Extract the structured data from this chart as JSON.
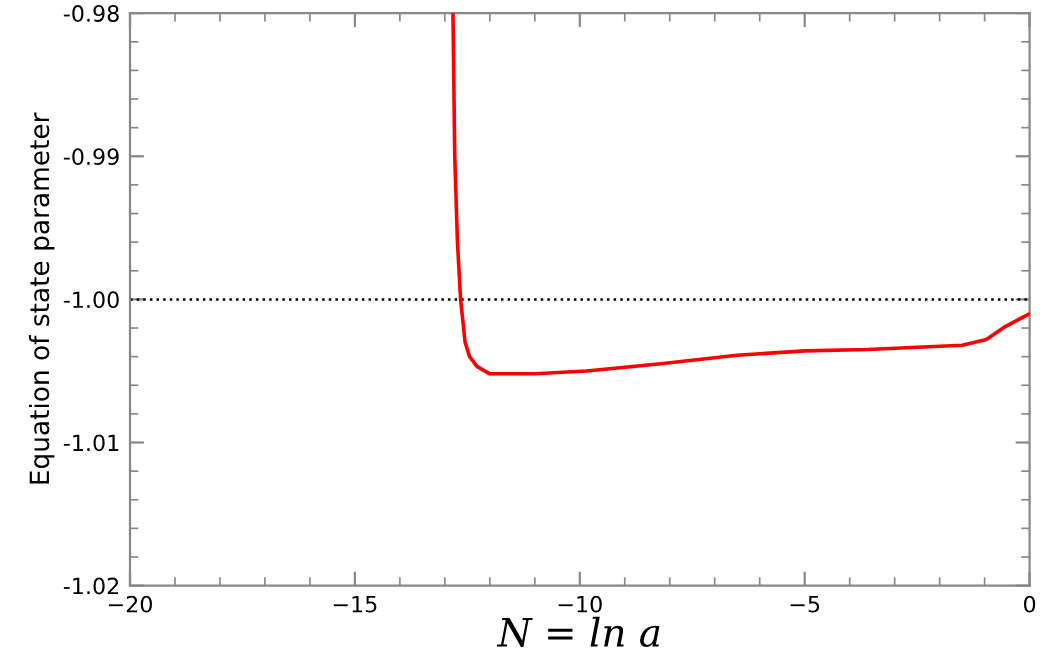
{
  "chart_data": {
    "type": "line",
    "xlabel": "N = ln a",
    "ylabel": "Equation of state parameter",
    "series": [
      {
        "color": "#ff0000",
        "x": [
          -12.82,
          -12.78,
          -12.72,
          -12.65,
          -12.55,
          -12.45,
          -12.28,
          -12.0,
          -11.0,
          -9.85,
          -8.2,
          -6.5,
          -5.0,
          -3.6,
          -1.5,
          -0.96,
          -0.54,
          0.0
        ],
        "values": [
          -0.98,
          -0.99,
          -0.996,
          -1.0,
          -1.003,
          -1.004,
          -1.0047,
          -1.0052,
          -1.0052,
          -1.005,
          -1.0045,
          -1.0039,
          -1.0036,
          -1.0035,
          -1.0032,
          -1.0028,
          -1.0019,
          -1.001
        ]
      }
    ],
    "xlim": [
      -20,
      0
    ],
    "ylim": [
      -1.02,
      -0.98
    ],
    "xticks": [
      {
        "value": -20,
        "label": "−20"
      },
      {
        "value": -15,
        "label": "−15"
      },
      {
        "value": -10,
        "label": "−10"
      },
      {
        "value": -5,
        "label": "−5"
      },
      0
    ],
    "yticks": [
      {
        "value": -1.02,
        "label": "-1.02"
      },
      {
        "value": -1.01,
        "label": "-1.01"
      },
      {
        "value": -1.0,
        "label": "-1.00"
      },
      {
        "value": -0.99,
        "label": "-0.99"
      },
      {
        "value": -0.98,
        "label": "-0.98"
      }
    ],
    "ref_lines": [
      {
        "axis": "y",
        "value": -1.0,
        "color": "#000000",
        "line_style": "dotted"
      }
    ],
    "grid": false,
    "legend": false,
    "marker": "none",
    "line_style": "solid"
  }
}
